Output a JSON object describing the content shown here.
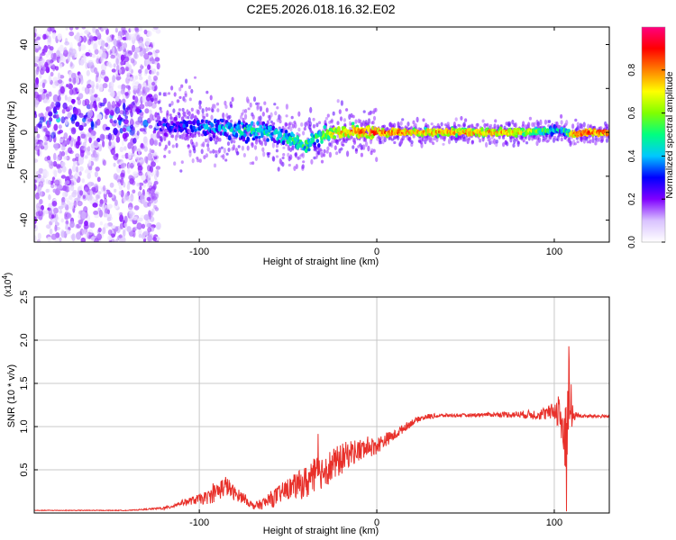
{
  "title": "C2E5.2026.018.16.32.E02",
  "chart_data": [
    {
      "type": "heatmap",
      "xlabel": "Height of straight line (km)",
      "ylabel": "Frequency (Hz)",
      "xlim": [
        -193,
        131
      ],
      "ylim": [
        -50,
        48
      ],
      "x_ticks": [
        -100,
        0,
        100
      ],
      "y_ticks": [
        -40,
        -20,
        0,
        20,
        40
      ],
      "colorbar": {
        "label": "Normalized spectral amplitude",
        "range": [
          0,
          1
        ],
        "ticks": [
          "0.0",
          "0.2",
          "0.4",
          "0.6",
          "0.8"
        ],
        "tick_values": [
          0.0,
          0.2,
          0.4,
          0.6,
          0.8
        ],
        "colors": [
          "#ffffff",
          "#d9c2ff",
          "#8000ff",
          "#0000ff",
          "#00c8ff",
          "#00ff80",
          "#80ff00",
          "#ffff00",
          "#ff8000",
          "#ff0000",
          "#ff0080"
        ]
      },
      "noise_region_x": [
        -193,
        -123
      ],
      "ridge": {
        "x": [
          -123,
          -110,
          -100,
          -90,
          -80,
          -70,
          -60,
          -50,
          -40,
          -35,
          -30,
          -20,
          -10,
          0,
          10,
          20,
          40,
          60,
          80,
          100,
          104,
          110,
          120,
          131
        ],
        "freq": [
          3,
          3,
          2,
          2,
          1,
          1,
          0,
          -3,
          -6,
          -3,
          -1,
          0,
          0,
          0,
          0,
          0,
          0,
          0,
          0,
          1,
          1,
          -1,
          0,
          0
        ],
        "amplitude": [
          0.35,
          0.4,
          0.45,
          0.5,
          0.55,
          0.6,
          0.55,
          0.6,
          0.65,
          0.6,
          0.7,
          0.85,
          0.9,
          0.95,
          0.95,
          0.85,
          0.9,
          0.9,
          0.85,
          0.6,
          0.5,
          0.9,
          0.95,
          0.95
        ]
      }
    },
    {
      "type": "line",
      "xlabel": "Height of straight line (km)",
      "ylabel": "SNR (10 * v/v)",
      "y_scale_label": "(x10",
      "y_scale_exponent": "4",
      "xlim": [
        -193,
        131
      ],
      "ylim": [
        0,
        2.5
      ],
      "x_ticks": [
        -100,
        0,
        100
      ],
      "y_ticks": [
        "0.5",
        "1.0",
        "1.5",
        "2.0",
        "2.5"
      ],
      "y_tick_values": [
        0.5,
        1.0,
        1.5,
        2.0,
        2.5
      ],
      "line_color": "#e8302a",
      "series": [
        {
          "name": "SNR",
          "x": [
            -193,
            -140,
            -125,
            -118,
            -110,
            -100,
            -95,
            -90,
            -85,
            -80,
            -75,
            -70,
            -65,
            -60,
            -50,
            -45,
            -40,
            -35,
            -30,
            -25,
            -20,
            -15,
            -10,
            -5,
            0,
            5,
            10,
            15,
            20,
            25,
            30,
            40,
            50,
            60,
            70,
            80,
            90,
            95,
            100,
            103,
            105,
            107,
            108,
            110,
            112,
            115,
            120,
            131
          ],
          "y": [
            0.03,
            0.03,
            0.05,
            0.06,
            0.12,
            0.16,
            0.18,
            0.25,
            0.32,
            0.22,
            0.18,
            0.08,
            0.1,
            0.15,
            0.28,
            0.32,
            0.35,
            0.42,
            0.5,
            0.55,
            0.62,
            0.7,
            0.72,
            0.75,
            0.78,
            0.85,
            0.9,
            0.98,
            1.05,
            1.1,
            1.12,
            1.13,
            1.13,
            1.14,
            1.14,
            1.14,
            1.14,
            1.15,
            1.18,
            1.2,
            0.9,
            0.35,
            1.5,
            1.1,
            1.14,
            1.12,
            1.12,
            1.12
          ],
          "noise_amplitude": [
            0.004,
            0.004,
            0.01,
            0.02,
            0.03,
            0.06,
            0.08,
            0.12,
            0.12,
            0.08,
            0.06,
            0.04,
            0.06,
            0.1,
            0.12,
            0.15,
            0.2,
            0.22,
            0.2,
            0.2,
            0.18,
            0.15,
            0.14,
            0.12,
            0.1,
            0.08,
            0.06,
            0.05,
            0.04,
            0.03,
            0.03,
            0.02,
            0.02,
            0.02,
            0.03,
            0.04,
            0.06,
            0.08,
            0.1,
            0.25,
            0.5,
            0.9,
            0.6,
            0.2,
            0.03,
            0.02,
            0.02,
            0.02
          ]
        }
      ]
    }
  ]
}
